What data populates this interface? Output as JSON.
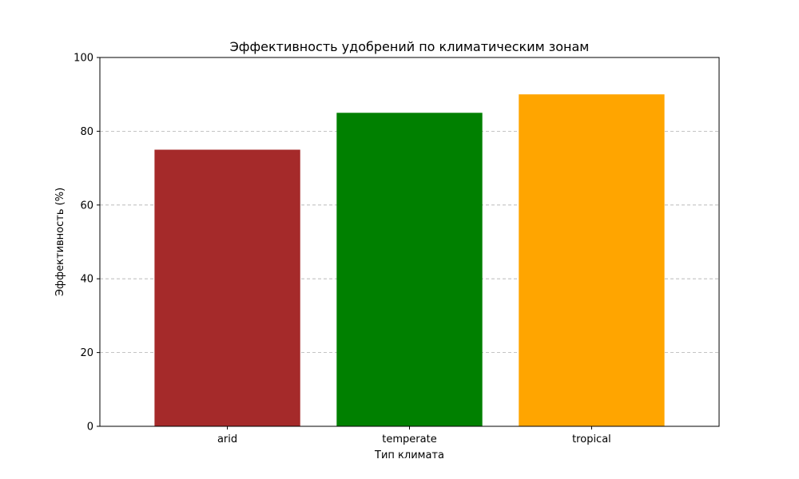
{
  "chart_data": {
    "type": "bar",
    "title": "Эффективность удобрений по климатическим зонам",
    "xlabel": "Тип климата",
    "ylabel": "Эффективность (%)",
    "categories": [
      "arid",
      "temperate",
      "tropical"
    ],
    "values": [
      75,
      85,
      90
    ],
    "colors": [
      "#a52a2a",
      "#008000",
      "#ffa500"
    ],
    "ylim": [
      0,
      100
    ],
    "yticks": [
      0,
      20,
      40,
      60,
      80,
      100
    ],
    "grid": "y-dashed",
    "legend": "none"
  }
}
